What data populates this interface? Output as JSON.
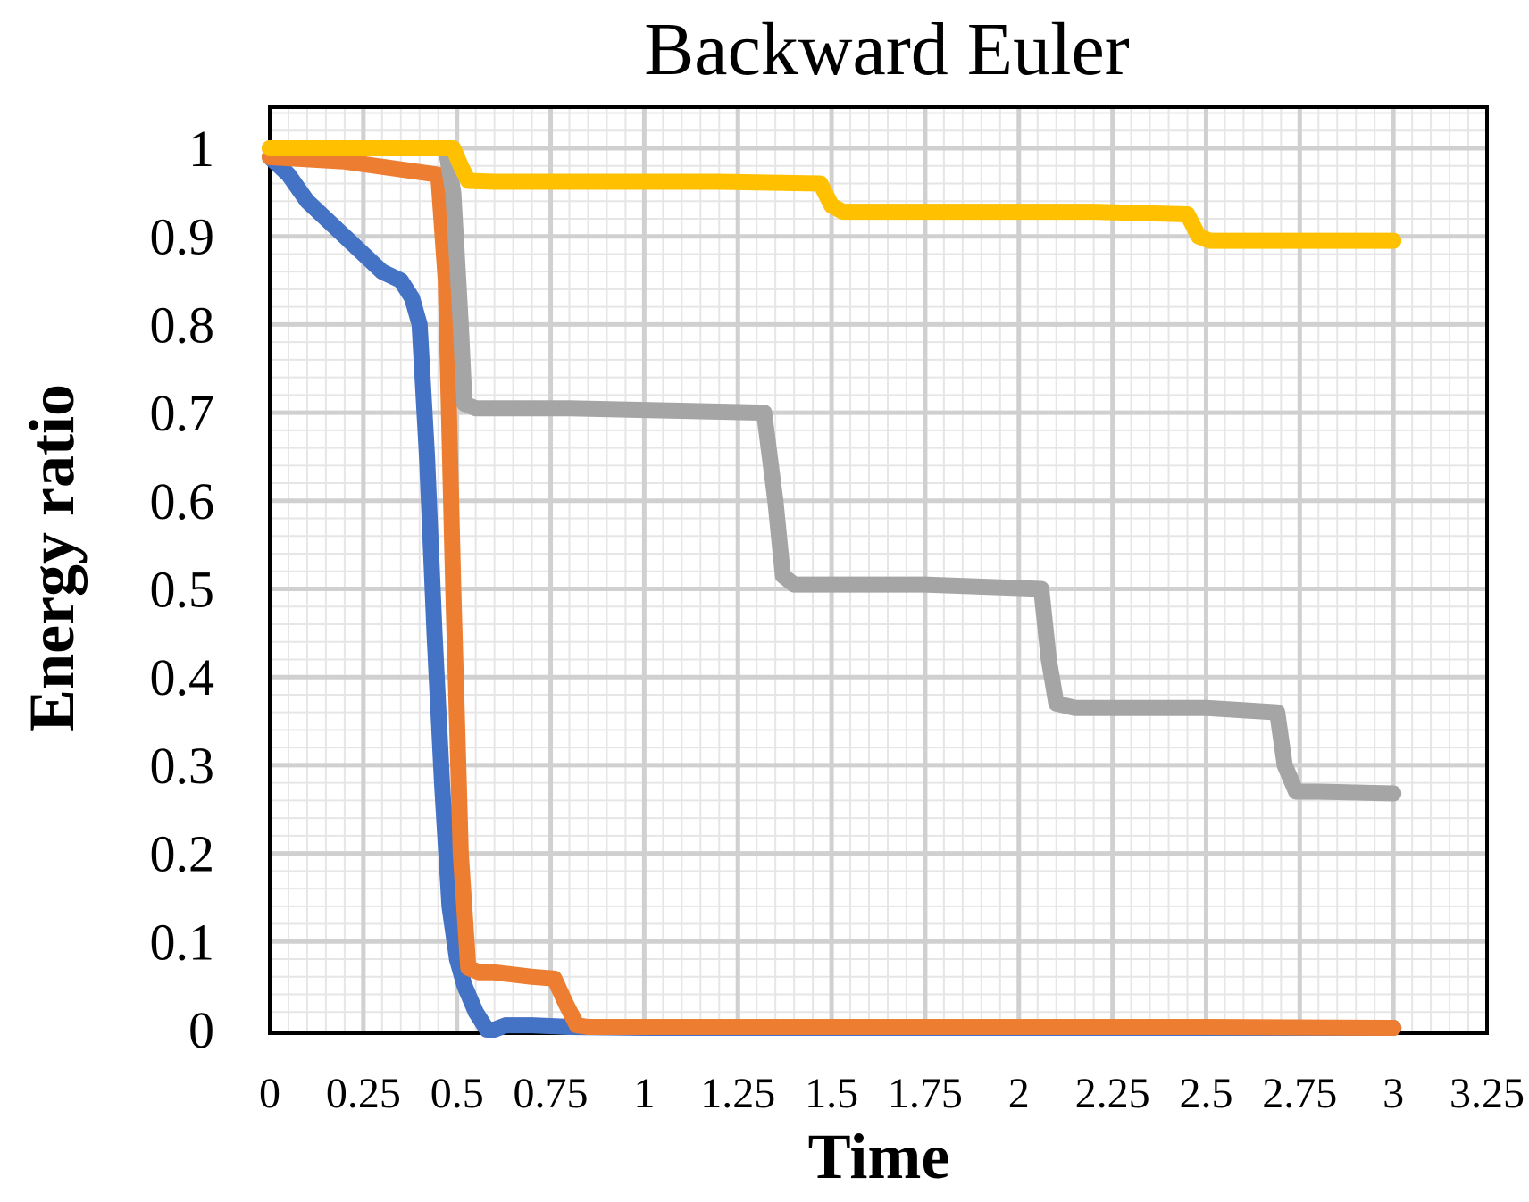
{
  "chart_data": {
    "type": "line",
    "title": "Backward Euler",
    "xlabel": "Time",
    "ylabel": "Energy ratio",
    "xlim": [
      0,
      3.25
    ],
    "ylim": [
      0,
      1.1
    ],
    "x_ticks": [
      "0",
      "0.25",
      "0.5",
      "0.75",
      "1",
      "1.25",
      "1.5",
      "1.75",
      "2",
      "2.25",
      "2.5",
      "2.75",
      "3",
      "3.25"
    ],
    "y_ticks": [
      "0",
      "0.1",
      "0.2",
      "0.3",
      "0.4",
      "0.5",
      "0.6",
      "0.7",
      "0.8",
      "0.9",
      "1"
    ],
    "grid": true,
    "legend": "none",
    "series": [
      {
        "color": "#4472C4",
        "x": [
          0,
          0.05,
          0.1,
          0.2,
          0.3,
          0.35,
          0.38,
          0.4,
          0.42,
          0.44,
          0.46,
          0.48,
          0.5,
          0.52,
          0.55,
          0.58,
          0.6,
          0.63,
          0.7,
          0.8,
          1,
          1.5,
          2,
          2.5,
          3
        ],
        "y": [
          0.99,
          0.97,
          0.94,
          0.9,
          0.86,
          0.85,
          0.83,
          0.8,
          0.65,
          0.45,
          0.28,
          0.14,
          0.08,
          0.05,
          0.02,
          0.0,
          0.0,
          0.005,
          0.005,
          0.003,
          0.002,
          0.002,
          0.002,
          0.002,
          0.002
        ]
      },
      {
        "color": "#ED7D31",
        "x": [
          0,
          0.2,
          0.45,
          0.47,
          0.49,
          0.51,
          0.53,
          0.56,
          0.6,
          0.7,
          0.76,
          0.79,
          0.82,
          0.85,
          1,
          1.5,
          2,
          2.5,
          3
        ],
        "y": [
          0.99,
          0.985,
          0.97,
          0.85,
          0.5,
          0.2,
          0.07,
          0.065,
          0.065,
          0.06,
          0.058,
          0.03,
          0.005,
          0.003,
          0.003,
          0.003,
          0.003,
          0.003,
          0.002
        ]
      },
      {
        "color": "#A5A5A5",
        "x": [
          0,
          0.25,
          0.47,
          0.49,
          0.51,
          0.52,
          0.55,
          0.8,
          1.0,
          1.32,
          1.35,
          1.37,
          1.4,
          1.5,
          1.75,
          2.06,
          2.08,
          2.1,
          2.15,
          2.5,
          2.69,
          2.71,
          2.74,
          2.8,
          3.0
        ],
        "y": [
          1.0,
          1.0,
          1.0,
          0.95,
          0.8,
          0.71,
          0.705,
          0.705,
          0.703,
          0.7,
          0.6,
          0.515,
          0.505,
          0.505,
          0.505,
          0.5,
          0.42,
          0.37,
          0.365,
          0.365,
          0.36,
          0.3,
          0.27,
          0.27,
          0.268
        ]
      },
      {
        "color": "#FFC000",
        "x": [
          0,
          0.25,
          0.49,
          0.51,
          0.53,
          0.6,
          1.0,
          1.2,
          1.47,
          1.5,
          1.53,
          1.6,
          2.0,
          2.2,
          2.45,
          2.48,
          2.51,
          2.6,
          3.0
        ],
        "y": [
          1.0,
          1.0,
          1.0,
          0.98,
          0.963,
          0.962,
          0.962,
          0.962,
          0.96,
          0.935,
          0.928,
          0.928,
          0.928,
          0.928,
          0.925,
          0.9,
          0.895,
          0.895,
          0.895
        ]
      }
    ]
  }
}
